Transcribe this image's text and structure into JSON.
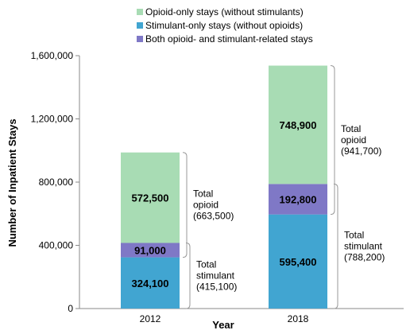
{
  "chart_data": {
    "type": "bar",
    "stacked": true,
    "categories": [
      "2012",
      "2018"
    ],
    "series": [
      {
        "name": "Stimulant-only stays (without opioids)",
        "values": [
          324100,
          595400
        ],
        "labels": [
          "324,100",
          "595,400"
        ],
        "color": "#41a5d1"
      },
      {
        "name": "Both opioid- and stimulant-related stays",
        "values": [
          91000,
          192800
        ],
        "labels": [
          "91,000",
          "192,800"
        ],
        "color": "#7f78c6"
      },
      {
        "name": "Opioid-only stays (without stimulants)",
        "values": [
          572500,
          748900
        ],
        "labels": [
          "572,500",
          "748,900"
        ],
        "color": "#a8dcb4"
      }
    ],
    "legend_order": [
      2,
      0,
      1
    ],
    "legend_placement": "top",
    "xlabel": "Year",
    "ylabel": "Number of Inpatient Stays",
    "ylim": [
      0,
      1600000
    ],
    "yticks": [
      0,
      400000,
      800000,
      1200000,
      1600000
    ],
    "ytick_labels": [
      "0",
      "400,000",
      "800,000",
      "1,200,000",
      "1,600,000"
    ],
    "grid": false,
    "annotations": [
      {
        "category": "2012",
        "kind": "opioid",
        "lines": [
          "Total",
          "opioid",
          "(663,500)"
        ],
        "from": 324100,
        "to": 987600
      },
      {
        "category": "2012",
        "kind": "stimulant",
        "lines": [
          "Total",
          "stimulant",
          "(415,100)"
        ],
        "from": 0,
        "to": 415100
      },
      {
        "category": "2018",
        "kind": "opioid",
        "lines": [
          "Total",
          "opioid",
          "(941,700)"
        ],
        "from": 595400,
        "to": 1537100
      },
      {
        "category": "2018",
        "kind": "stimulant",
        "lines": [
          "Total",
          "stimulant",
          "(788,200)"
        ],
        "from": 0,
        "to": 788200
      }
    ]
  }
}
